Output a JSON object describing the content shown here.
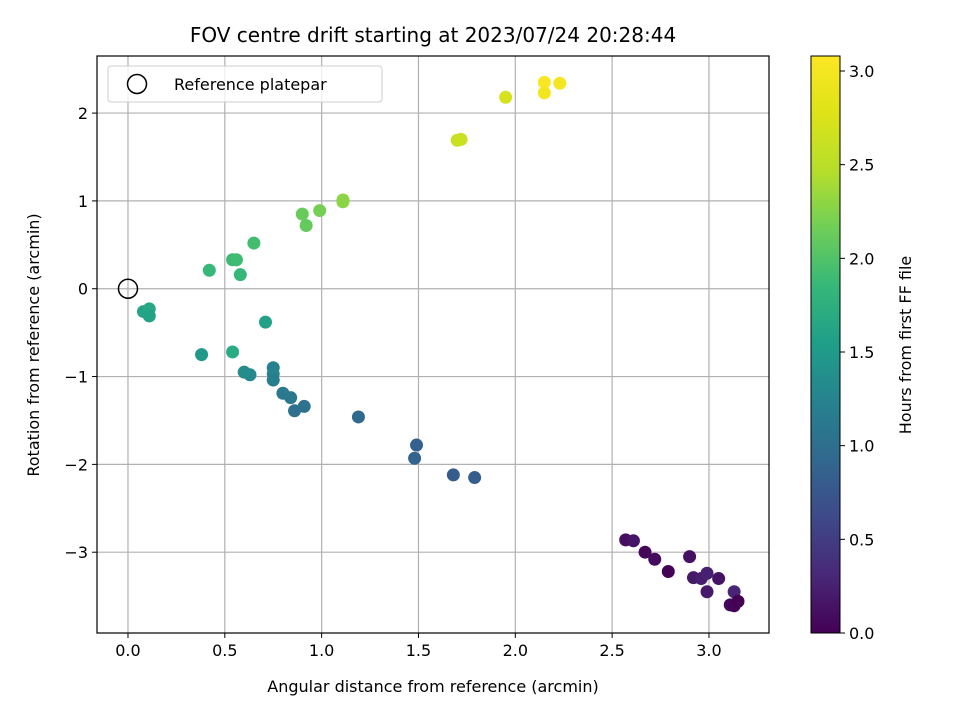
{
  "chart_data": {
    "type": "scatter",
    "title": "FOV centre drift starting at 2023/07/24 20:28:44",
    "xlabel": "Angular distance from reference (arcmin)",
    "ylabel": "Rotation from reference (arcmin)",
    "xlim": [
      -0.16,
      3.31
    ],
    "ylim": [
      -3.92,
      2.65
    ],
    "grid": true,
    "x_ticks": [
      0.0,
      0.5,
      1.0,
      1.5,
      2.0,
      2.5,
      3.0
    ],
    "x_tick_labels": [
      "0.0",
      "0.5",
      "1.0",
      "1.5",
      "2.0",
      "2.5",
      "3.0"
    ],
    "y_ticks": [
      -3,
      -2,
      -1,
      0,
      1,
      2
    ],
    "y_tick_labels": [
      "−3",
      "−2",
      "−1",
      "0",
      "1",
      "2"
    ],
    "legend": {
      "placement": "top-left",
      "entries": [
        "Reference platepar"
      ]
    },
    "reference_point": {
      "x": 0.0,
      "y": 0.0,
      "marker": "hollow-circle"
    },
    "colorbar": {
      "label": "Hours from first FF file",
      "range": [
        0.0,
        3.08
      ],
      "ticks": [
        0.0,
        0.5,
        1.0,
        1.5,
        2.0,
        2.5,
        3.0
      ],
      "tick_labels": [
        "0.0",
        "0.5",
        "1.0",
        "1.5",
        "2.0",
        "2.5",
        "3.0"
      ],
      "colormap": "viridis"
    },
    "points": [
      {
        "x": 2.57,
        "y": -2.86,
        "t": 0.1
      },
      {
        "x": 2.61,
        "y": -2.87,
        "t": 0.15
      },
      {
        "x": 2.67,
        "y": -3.0,
        "t": 0.05
      },
      {
        "x": 2.72,
        "y": -3.08,
        "t": 0.08
      },
      {
        "x": 2.79,
        "y": -3.22,
        "t": 0.02
      },
      {
        "x": 2.9,
        "y": -3.05,
        "t": 0.12
      },
      {
        "x": 2.92,
        "y": -3.29,
        "t": 0.18
      },
      {
        "x": 2.96,
        "y": -3.3,
        "t": 0.22
      },
      {
        "x": 2.99,
        "y": -3.24,
        "t": 0.25
      },
      {
        "x": 2.99,
        "y": -3.45,
        "t": 0.2
      },
      {
        "x": 3.05,
        "y": -3.3,
        "t": 0.14
      },
      {
        "x": 3.11,
        "y": -3.6,
        "t": 0.06
      },
      {
        "x": 3.13,
        "y": -3.61,
        "t": 0.03
      },
      {
        "x": 3.13,
        "y": -3.45,
        "t": 0.28
      },
      {
        "x": 3.15,
        "y": -3.56,
        "t": 0.0
      },
      {
        "x": 1.49,
        "y": -1.78,
        "t": 0.85
      },
      {
        "x": 1.48,
        "y": -1.93,
        "t": 0.88
      },
      {
        "x": 1.68,
        "y": -2.12,
        "t": 0.8
      },
      {
        "x": 1.79,
        "y": -2.15,
        "t": 0.82
      },
      {
        "x": 1.19,
        "y": -1.46,
        "t": 0.95
      },
      {
        "x": 0.91,
        "y": -1.34,
        "t": 1.05
      },
      {
        "x": 0.86,
        "y": -1.39,
        "t": 1.02
      },
      {
        "x": 0.84,
        "y": -1.24,
        "t": 1.1
      },
      {
        "x": 0.8,
        "y": -1.19,
        "t": 1.12
      },
      {
        "x": 0.75,
        "y": -0.9,
        "t": 1.22
      },
      {
        "x": 0.75,
        "y": -0.97,
        "t": 1.25
      },
      {
        "x": 0.75,
        "y": -1.04,
        "t": 1.2
      },
      {
        "x": 0.63,
        "y": -0.98,
        "t": 1.3
      },
      {
        "x": 0.6,
        "y": -0.95,
        "t": 1.35
      },
      {
        "x": 0.71,
        "y": -0.38,
        "t": 1.58
      },
      {
        "x": 0.38,
        "y": -0.75,
        "t": 1.48
      },
      {
        "x": 0.54,
        "y": -0.72,
        "t": 1.7
      },
      {
        "x": 0.08,
        "y": -0.26,
        "t": 1.62
      },
      {
        "x": 0.11,
        "y": -0.23,
        "t": 1.65
      },
      {
        "x": 0.11,
        "y": -0.31,
        "t": 1.6
      },
      {
        "x": 0.42,
        "y": 0.21,
        "t": 1.86
      },
      {
        "x": 0.54,
        "y": 0.33,
        "t": 1.88
      },
      {
        "x": 0.56,
        "y": 0.33,
        "t": 1.9
      },
      {
        "x": 0.58,
        "y": 0.16,
        "t": 1.85
      },
      {
        "x": 0.65,
        "y": 0.52,
        "t": 1.92
      },
      {
        "x": 0.9,
        "y": 0.85,
        "t": 2.12
      },
      {
        "x": 0.92,
        "y": 0.72,
        "t": 2.1
      },
      {
        "x": 0.99,
        "y": 0.89,
        "t": 2.18
      },
      {
        "x": 1.11,
        "y": 1.01,
        "t": 2.3
      },
      {
        "x": 1.11,
        "y": 0.99,
        "t": 2.28
      },
      {
        "x": 1.7,
        "y": 1.69,
        "t": 2.6
      },
      {
        "x": 1.72,
        "y": 1.7,
        "t": 2.62
      },
      {
        "x": 1.95,
        "y": 2.18,
        "t": 2.72
      },
      {
        "x": 2.15,
        "y": 2.35,
        "t": 3.05
      },
      {
        "x": 2.15,
        "y": 2.23,
        "t": 2.98
      },
      {
        "x": 2.23,
        "y": 2.34,
        "t": 3.0
      }
    ]
  }
}
